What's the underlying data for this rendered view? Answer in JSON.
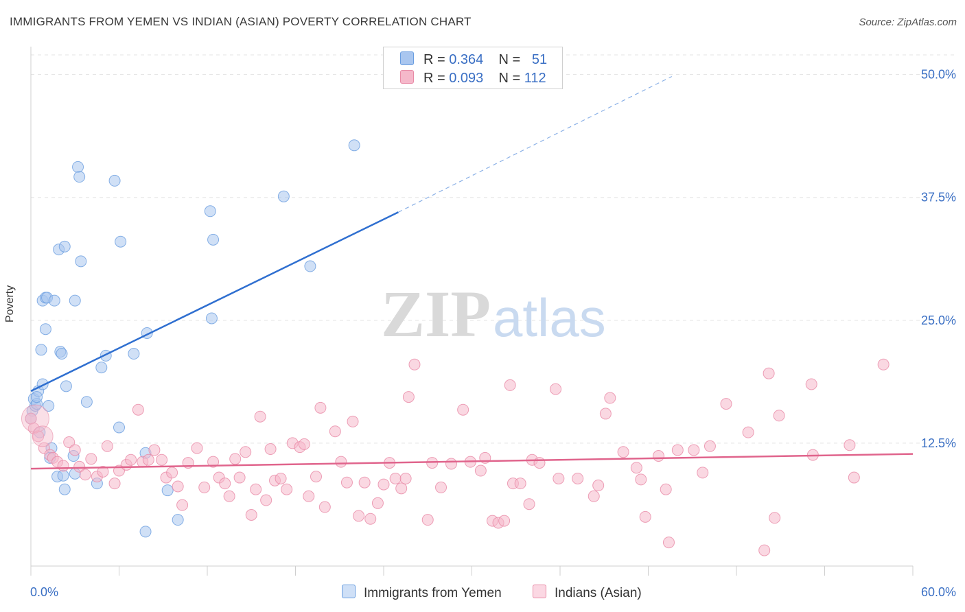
{
  "title": "IMMIGRANTS FROM YEMEN VS INDIAN (ASIAN) POVERTY CORRELATION CHART",
  "source": "Source: ZipAtlas.com",
  "watermark": {
    "zip": "ZIP",
    "atlas": "atlas"
  },
  "legend_stats": [
    {
      "r_label": "R =",
      "r_value": "0.364",
      "n_label": "N =",
      "n_value": "51"
    },
    {
      "r_label": "R =",
      "r_value": "0.093",
      "n_label": "N =",
      "n_value": "112"
    }
  ],
  "chart_data": {
    "type": "scatter",
    "title": "IMMIGRANTS FROM YEMEN VS INDIAN (ASIAN) POVERTY CORRELATION CHART",
    "ylabel": "Poverty",
    "xlabel": "",
    "xlim": [
      0,
      60
    ],
    "ylim": [
      0,
      52
    ],
    "x_tick_labels": [
      "0.0%",
      "60.0%"
    ],
    "y_ticks": [
      12.5,
      25.0,
      37.5,
      50.0
    ],
    "y_tick_labels": [
      "12.5%",
      "25.0%",
      "37.5%",
      "50.0%"
    ],
    "grid": true,
    "series": [
      {
        "name": "Immigrants from Yemen",
        "color": "#6a9ee0",
        "fill": "#a9c6ef",
        "trend": {
          "x0": 0,
          "y0": 17.8,
          "x1": 25,
          "y1": 36.0,
          "dash_to_x": 43.6,
          "dash_to_y": 49.8
        },
        "points": [
          [
            0.1,
            15.8
          ],
          [
            0.2,
            17.0
          ],
          [
            0.3,
            16.3
          ],
          [
            0.4,
            16.5
          ],
          [
            0.5,
            17.8
          ],
          [
            0.4,
            17.2
          ],
          [
            0.6,
            13.6
          ],
          [
            0.8,
            18.5
          ],
          [
            0.7,
            22.0
          ],
          [
            0.8,
            27.0
          ],
          [
            1.0,
            27.3
          ],
          [
            1.1,
            27.3
          ],
          [
            1.0,
            24.1
          ],
          [
            1.2,
            16.3
          ],
          [
            1.4,
            12.0
          ],
          [
            1.3,
            11.0
          ],
          [
            1.6,
            27.0
          ],
          [
            1.8,
            9.1
          ],
          [
            1.9,
            32.2
          ],
          [
            2.0,
            21.8
          ],
          [
            2.1,
            21.6
          ],
          [
            2.2,
            9.2
          ],
          [
            2.3,
            7.8
          ],
          [
            2.3,
            32.5
          ],
          [
            2.4,
            18.3
          ],
          [
            2.9,
            11.2
          ],
          [
            3.0,
            27.0
          ],
          [
            3.0,
            9.4
          ],
          [
            3.2,
            40.6
          ],
          [
            3.3,
            39.6
          ],
          [
            3.4,
            31.0
          ],
          [
            3.8,
            16.7
          ],
          [
            4.5,
            8.4
          ],
          [
            4.8,
            20.2
          ],
          [
            5.1,
            21.4
          ],
          [
            5.7,
            39.2
          ],
          [
            6.0,
            14.1
          ],
          [
            6.1,
            33.0
          ],
          [
            7.0,
            21.6
          ],
          [
            7.8,
            3.5
          ],
          [
            7.8,
            11.5
          ],
          [
            7.9,
            23.7
          ],
          [
            9.3,
            7.7
          ],
          [
            10.0,
            4.7
          ],
          [
            12.2,
            36.1
          ],
          [
            12.3,
            25.2
          ],
          [
            12.4,
            33.2
          ],
          [
            17.2,
            37.6
          ],
          [
            19.0,
            30.5
          ],
          [
            22.0,
            42.8
          ],
          [
            0.0,
            15.0
          ]
        ]
      },
      {
        "name": "Indians (Asian)",
        "color": "#e88aa6",
        "fill": "#f5b8ca",
        "trend": {
          "x0": 0,
          "y0": 9.9,
          "x1": 60,
          "y1": 11.4
        },
        "points": [
          [
            0.0,
            15.0
          ],
          [
            0.2,
            14.0
          ],
          [
            0.5,
            13.2
          ],
          [
            0.9,
            12.0
          ],
          [
            1.3,
            11.3
          ],
          [
            1.5,
            11.0
          ],
          [
            1.8,
            10.6
          ],
          [
            2.2,
            10.2
          ],
          [
            2.6,
            12.6
          ],
          [
            3.0,
            11.8
          ],
          [
            3.3,
            10.1
          ],
          [
            3.7,
            9.3
          ],
          [
            4.1,
            10.9
          ],
          [
            4.5,
            9.1
          ],
          [
            4.9,
            9.6
          ],
          [
            5.2,
            12.2
          ],
          [
            5.7,
            8.4
          ],
          [
            6.0,
            9.7
          ],
          [
            6.5,
            10.3
          ],
          [
            6.8,
            10.8
          ],
          [
            7.3,
            15.9
          ],
          [
            7.6,
            10.6
          ],
          [
            8.0,
            10.8
          ],
          [
            8.4,
            11.8
          ],
          [
            8.9,
            10.8
          ],
          [
            9.2,
            9.0
          ],
          [
            9.6,
            9.5
          ],
          [
            10.0,
            8.1
          ],
          [
            10.3,
            6.2
          ],
          [
            10.7,
            10.5
          ],
          [
            11.3,
            12.0
          ],
          [
            11.8,
            8.0
          ],
          [
            12.4,
            10.6
          ],
          [
            12.8,
            9.0
          ],
          [
            13.2,
            8.4
          ],
          [
            13.5,
            7.1
          ],
          [
            13.9,
            10.9
          ],
          [
            14.2,
            9.0
          ],
          [
            14.6,
            11.6
          ],
          [
            15.0,
            5.2
          ],
          [
            15.3,
            7.8
          ],
          [
            15.6,
            15.2
          ],
          [
            16.0,
            6.7
          ],
          [
            16.3,
            11.9
          ],
          [
            16.6,
            8.7
          ],
          [
            17.0,
            8.9
          ],
          [
            17.4,
            7.8
          ],
          [
            17.8,
            12.5
          ],
          [
            18.3,
            12.1
          ],
          [
            18.6,
            12.4
          ],
          [
            18.9,
            7.1
          ],
          [
            19.4,
            9.1
          ],
          [
            19.7,
            16.1
          ],
          [
            20.0,
            6.0
          ],
          [
            20.7,
            13.7
          ],
          [
            21.1,
            10.6
          ],
          [
            21.5,
            8.5
          ],
          [
            21.9,
            14.7
          ],
          [
            22.3,
            5.1
          ],
          [
            22.7,
            8.5
          ],
          [
            23.1,
            4.8
          ],
          [
            23.6,
            6.4
          ],
          [
            24.0,
            8.3
          ],
          [
            24.4,
            10.5
          ],
          [
            24.8,
            8.9
          ],
          [
            25.2,
            7.9
          ],
          [
            25.5,
            8.9
          ],
          [
            26.1,
            20.5
          ],
          [
            25.7,
            17.2
          ],
          [
            27.0,
            4.7
          ],
          [
            27.3,
            10.5
          ],
          [
            27.9,
            8.0
          ],
          [
            28.6,
            10.4
          ],
          [
            29.4,
            15.9
          ],
          [
            29.9,
            10.6
          ],
          [
            30.6,
            9.7
          ],
          [
            30.9,
            11.0
          ],
          [
            31.4,
            4.6
          ],
          [
            31.8,
            4.4
          ],
          [
            32.2,
            4.6
          ],
          [
            32.6,
            18.4
          ],
          [
            32.8,
            8.4
          ],
          [
            33.3,
            8.4
          ],
          [
            33.9,
            6.3
          ],
          [
            34.1,
            10.8
          ],
          [
            34.6,
            10.5
          ],
          [
            35.7,
            18.0
          ],
          [
            35.9,
            8.9
          ],
          [
            37.2,
            8.9
          ],
          [
            38.3,
            7.1
          ],
          [
            38.6,
            8.2
          ],
          [
            39.1,
            15.5
          ],
          [
            39.4,
            17.1
          ],
          [
            40.3,
            11.6
          ],
          [
            41.2,
            10.0
          ],
          [
            41.5,
            8.8
          ],
          [
            41.8,
            5.0
          ],
          [
            42.7,
            11.2
          ],
          [
            43.2,
            7.8
          ],
          [
            43.4,
            2.4
          ],
          [
            44.0,
            11.8
          ],
          [
            45.1,
            11.8
          ],
          [
            45.7,
            9.5
          ],
          [
            46.2,
            12.2
          ],
          [
            47.3,
            16.5
          ],
          [
            48.8,
            13.6
          ],
          [
            49.9,
            1.6
          ],
          [
            50.2,
            19.6
          ],
          [
            50.6,
            4.9
          ],
          [
            50.9,
            15.3
          ],
          [
            53.1,
            18.5
          ],
          [
            55.7,
            12.3
          ]
        ],
        "extra_points": [
          [
            53.2,
            11.3
          ],
          [
            56.0,
            9.0
          ],
          [
            58.0,
            20.5
          ]
        ]
      }
    ]
  }
}
